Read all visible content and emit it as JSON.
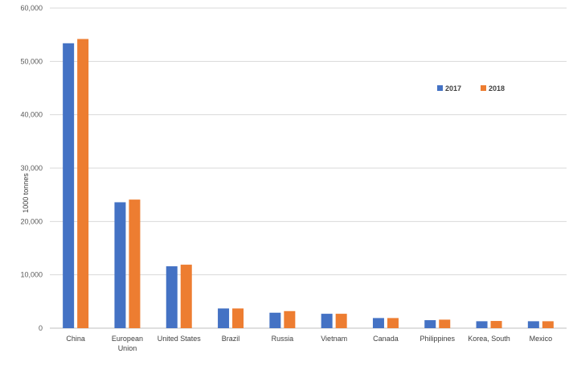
{
  "chart_data": {
    "type": "bar",
    "title": "",
    "xlabel": "",
    "ylabel": "1000 tonnes",
    "ylim": [
      0,
      60000
    ],
    "yticks": [
      0,
      10000,
      20000,
      30000,
      40000,
      50000,
      60000
    ],
    "ytick_labels": [
      "0",
      "10,000",
      "20,000",
      "30,000",
      "40,000",
      "50,000",
      "60,000"
    ],
    "categories": [
      [
        "China"
      ],
      [
        "European",
        "Union"
      ],
      [
        "United States"
      ],
      [
        "Brazil"
      ],
      [
        "Russia"
      ],
      [
        "Vietnam"
      ],
      [
        "Canada"
      ],
      [
        "Philippines"
      ],
      [
        "Korea, South"
      ],
      [
        "Mexico"
      ]
    ],
    "series": [
      {
        "name": "2017",
        "color": "#4472C4",
        "values": [
          53400,
          23600,
          11600,
          3700,
          2900,
          2700,
          1900,
          1500,
          1300,
          1300
        ]
      },
      {
        "name": "2018",
        "color": "#ED7D31",
        "values": [
          54200,
          24100,
          11900,
          3700,
          3200,
          2700,
          1900,
          1600,
          1350,
          1300
        ]
      }
    ],
    "grid": true,
    "legend_position": "top-right"
  }
}
